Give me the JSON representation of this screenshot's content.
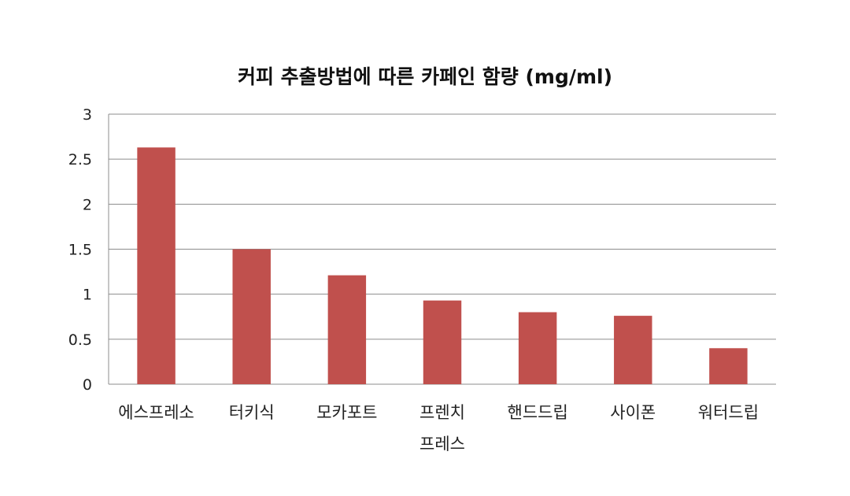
{
  "chart_data": {
    "type": "bar",
    "title": "커피 추출방법에 따른 카페인 함량 (mg/ml)",
    "xlabel": "",
    "ylabel": "",
    "categories": [
      "에스프레소",
      "터키식",
      "모카포트",
      "프렌치 프레스",
      "핸드드립",
      "사이폰",
      "워터드립"
    ],
    "values": [
      2.63,
      1.5,
      1.21,
      0.93,
      0.8,
      0.76,
      0.4
    ],
    "ylim": [
      0,
      3
    ],
    "yticks": [
      "0",
      "0.5",
      "1",
      "1.5",
      "2",
      "2.5",
      "3"
    ],
    "grid": true,
    "legend": "none",
    "bar_color": "#c0504d"
  }
}
